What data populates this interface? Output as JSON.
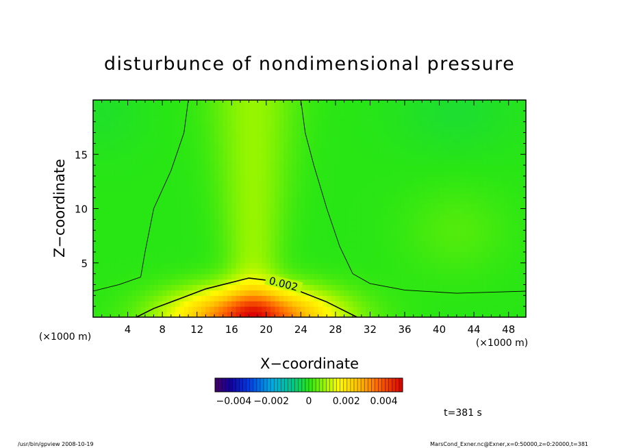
{
  "chart_data": {
    "type": "heatmap",
    "title": "disturbunce of nondimensional pressure",
    "xlabel": "X−coordinate",
    "ylabel": "Z−coordinate",
    "x_unit": "(×1000 m)",
    "y_unit": "(×1000 m)",
    "xlim": [
      0,
      50
    ],
    "ylim": [
      0,
      20
    ],
    "x_ticks": [
      4,
      8,
      12,
      16,
      20,
      24,
      28,
      32,
      36,
      40,
      44,
      48
    ],
    "y_ticks": [
      5,
      10,
      15
    ],
    "contour_label": "0.002",
    "contours": [
      {
        "level": 0.002,
        "labeled": true,
        "points": [
          [
            5,
            0
          ],
          [
            7,
            0.8
          ],
          [
            10,
            1.7
          ],
          [
            13,
            2.6
          ],
          [
            18,
            3.6
          ],
          [
            21,
            3.3
          ],
          [
            23.5,
            2.5
          ],
          [
            27,
            1.4
          ],
          [
            30.5,
            0
          ]
        ]
      },
      {
        "level": 0.0,
        "labeled": false,
        "points": [
          [
            0,
            2.4
          ],
          [
            3,
            3.0
          ],
          [
            5.5,
            3.7
          ],
          [
            6,
            6
          ],
          [
            7,
            10
          ],
          [
            9,
            13.5
          ],
          [
            10.5,
            17
          ],
          [
            11,
            20
          ]
        ]
      },
      {
        "level": 0.0,
        "labeled": false,
        "points": [
          [
            24,
            20
          ],
          [
            24.5,
            17
          ],
          [
            25.5,
            14
          ],
          [
            27,
            10
          ],
          [
            28.5,
            6.5
          ],
          [
            30,
            4
          ],
          [
            32,
            3.1
          ],
          [
            36,
            2.5
          ],
          [
            42,
            2.2
          ],
          [
            50,
            2.4
          ]
        ]
      }
    ],
    "colorbar": {
      "min": -0.005,
      "max": 0.005,
      "tick_values": [
        -0.004,
        -0.002,
        0,
        0.002,
        0.004
      ],
      "tick_labels": [
        "−0.004",
        "−0.002",
        "0",
        "0.002",
        "0.004"
      ]
    },
    "time_label": "t=381 s",
    "footer_left": "/usr/bin/gpview   2008-10-19",
    "footer_right": "MarsCond_Exner.nc@Exner,x=0:50000,z=0:20000,t=381"
  }
}
